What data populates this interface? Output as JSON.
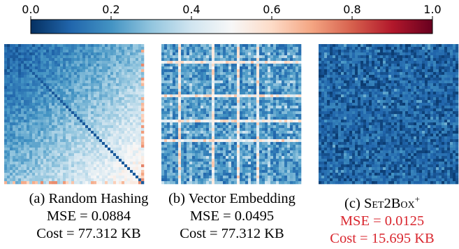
{
  "chart_data": {
    "type": "heatmap",
    "colorbar": {
      "range": [
        0.0,
        1.0
      ],
      "ticks": [
        0.0,
        0.2,
        0.4,
        0.6,
        0.8,
        1.0
      ],
      "tick_labels": [
        "0.0",
        "0.2",
        "0.4",
        "0.6",
        "0.8",
        "1.0"
      ],
      "colormap": [
        "#053061",
        "#2166ac",
        "#4393c3",
        "#92c5de",
        "#d1e5f0",
        "#f7f7f7",
        "#fddbc7",
        "#f4a582",
        "#d6604d",
        "#b2182b",
        "#67001f"
      ]
    },
    "panels": [
      {
        "id": "a",
        "caption_prefix": "(a)",
        "method": "Random Hashing",
        "mse_text": "MSE = 0.0884",
        "cost_text": "Cost = 77.312 KB",
        "mse": 0.0884,
        "cost_kb": 77.312,
        "highlight": false,
        "pattern": "gradient",
        "typical_error_range": [
          0.1,
          0.55
        ]
      },
      {
        "id": "b",
        "caption_prefix": "(b)",
        "method": "Vector Embedding",
        "mse_text": "MSE = 0.0495",
        "cost_text": "Cost = 77.312 KB",
        "mse": 0.0495,
        "cost_kb": 77.312,
        "highlight": false,
        "pattern": "streaks",
        "typical_error_range": [
          0.05,
          0.3
        ]
      },
      {
        "id": "c",
        "caption_prefix": "(c)",
        "method": "Set2Box",
        "method_superscript": "+",
        "mse_text": "MSE = 0.0125",
        "cost_text": "Cost = 15.695 KB",
        "mse": 0.0125,
        "cost_kb": 15.695,
        "highlight": true,
        "highlight_color": "#d9262e",
        "pattern": "uniform",
        "typical_error_range": [
          0.02,
          0.2
        ]
      }
    ]
  }
}
